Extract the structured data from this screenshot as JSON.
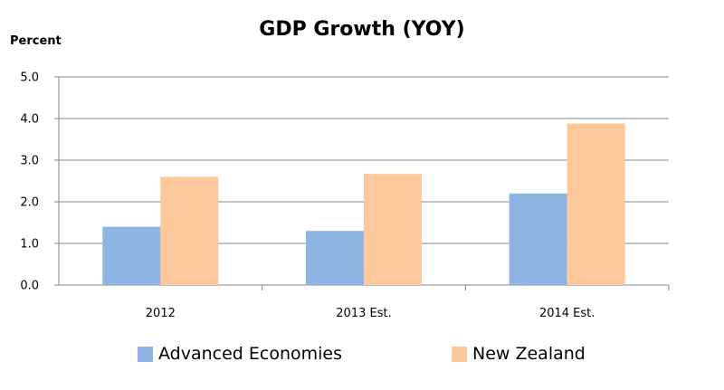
{
  "chart_data": {
    "type": "bar",
    "title": "GDP Growth (YOY)",
    "ylabel": "Percent",
    "xlabel": "",
    "categories": [
      "2012",
      "2013 Est.",
      "2014 Est."
    ],
    "series": [
      {
        "name": "Advanced Economies",
        "values": [
          1.4,
          1.3,
          2.2
        ],
        "color": "#8db4e2"
      },
      {
        "name": "New Zealand",
        "values": [
          2.6,
          2.67,
          3.88
        ],
        "color": "#fcc89c"
      }
    ],
    "ylim": [
      0,
      5
    ],
    "yticks": [
      "0.0",
      "1.0",
      "2.0",
      "3.0",
      "4.0",
      "5.0"
    ],
    "grid": true,
    "legend_position": "bottom"
  }
}
